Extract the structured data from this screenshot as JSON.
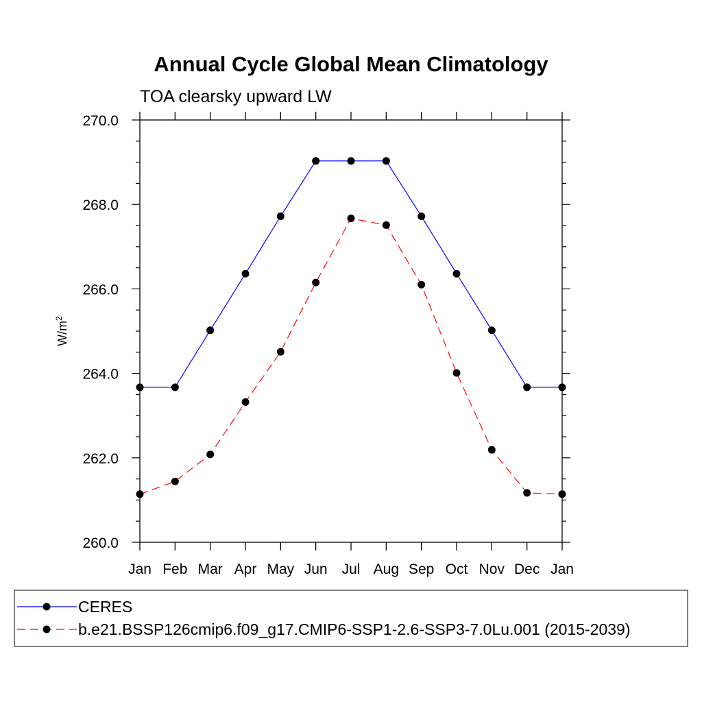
{
  "chart_data": {
    "type": "line",
    "title": "Annual Cycle Global Mean Climatology",
    "subtitle": "TOA clearsky upward LW",
    "ylabel_base": "W/m",
    "ylabel_sup": "2",
    "categories": [
      "Jan",
      "Feb",
      "Mar",
      "Apr",
      "May",
      "Jun",
      "Jul",
      "Aug",
      "Sep",
      "Oct",
      "Nov",
      "Dec",
      "Jan"
    ],
    "ylim": [
      260.0,
      270.0
    ],
    "yticks": [
      "260.0",
      "262.0",
      "264.0",
      "266.0",
      "268.0",
      "270.0"
    ],
    "series": [
      {
        "name": "CERES",
        "color": "#0000ff",
        "dash": "solid",
        "marker": "filled-circle",
        "values": [
          263.67,
          263.67,
          265.02,
          266.36,
          267.72,
          269.03,
          269.03,
          269.03,
          267.72,
          266.36,
          265.02,
          263.67,
          263.67
        ]
      },
      {
        "name": "b.e21.BSSP126cmip6.f09_g17.CMIP6-SSP1-2.6-SSP3-7.0Lu.001 (2015-2039)",
        "color": "#ff0000",
        "dash": "dashed",
        "marker": "filled-circle",
        "values": [
          261.14,
          261.44,
          262.08,
          263.32,
          264.51,
          266.15,
          267.67,
          267.51,
          266.1,
          264.01,
          262.19,
          261.17,
          261.14
        ]
      }
    ],
    "legend_placement": "bottom",
    "grid": false
  }
}
